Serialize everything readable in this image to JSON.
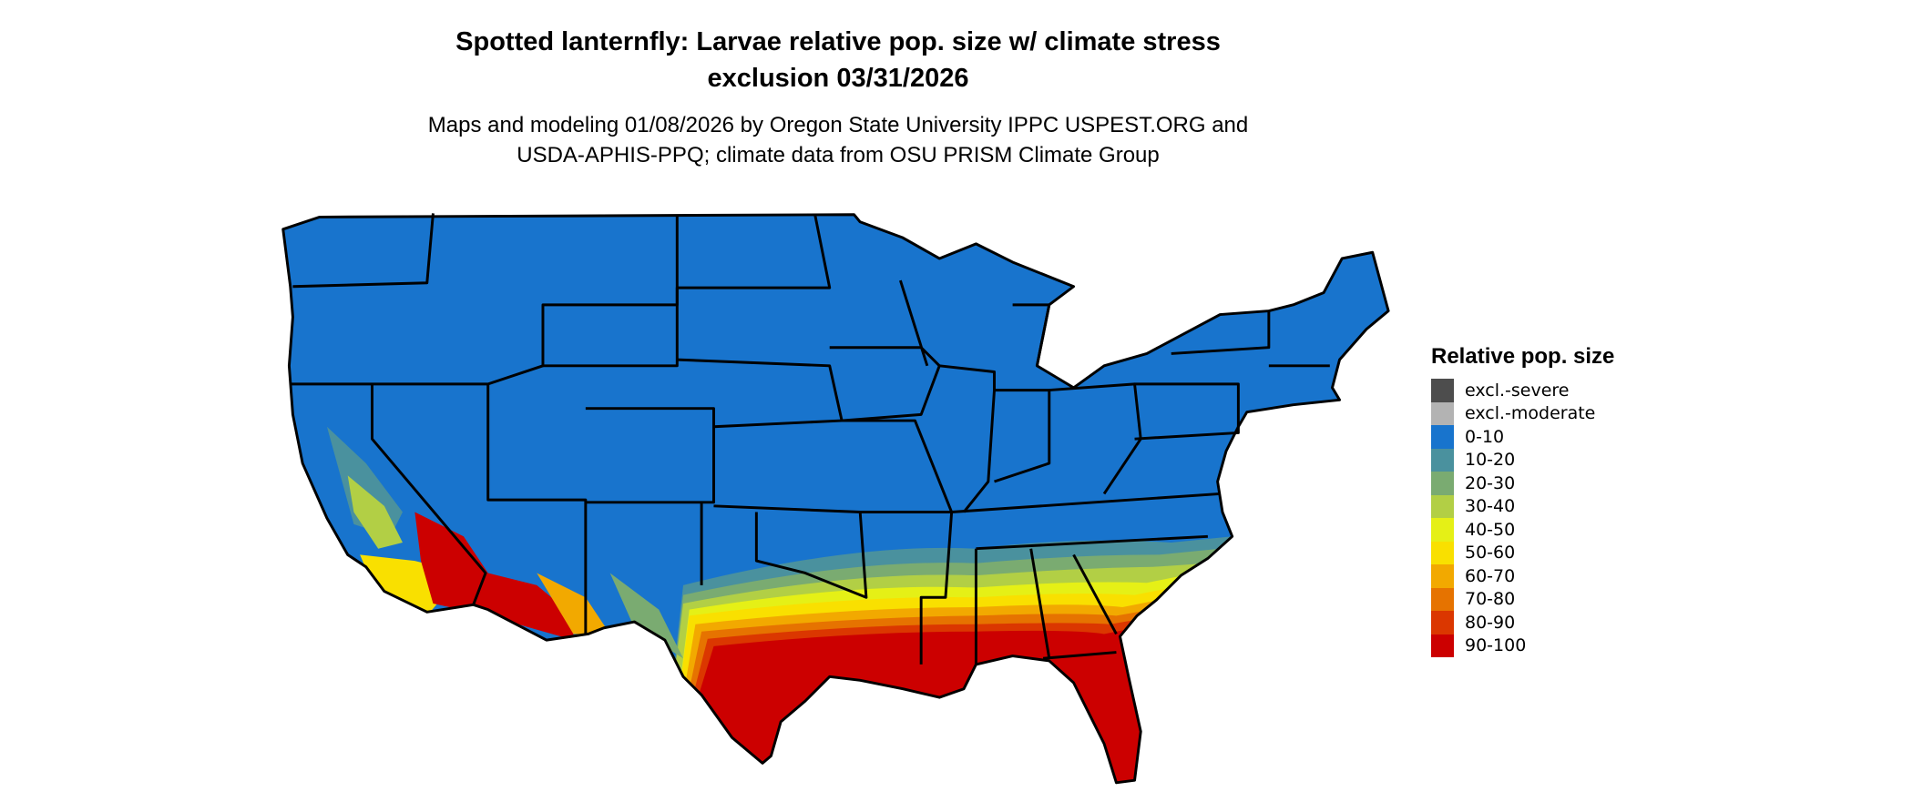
{
  "title": {
    "line1": "Spotted lanternfly: Larvae relative pop. size w/ climate stress",
    "line2": "exclusion 03/31/2026"
  },
  "subtitle": {
    "line1": "Maps and modeling 01/08/2026 by Oregon State University IPPC USPEST.ORG and",
    "line2": "USDA-APHIS-PPQ; climate data from OSU PRISM Climate Group"
  },
  "map": {
    "region": "Contiguous United States",
    "background_class": "0-10",
    "state_borders": true
  },
  "legend": {
    "title": "Relative pop. size",
    "placement": "right",
    "items": [
      {
        "label": "excl.-severe",
        "color": "#4d4d4d"
      },
      {
        "label": "excl.-moderate",
        "color": "#b3b3b3"
      },
      {
        "label": "0-10",
        "color": "#1874cd"
      },
      {
        "label": "10-20",
        "color": "#4a919e"
      },
      {
        "label": "20-30",
        "color": "#7aab71"
      },
      {
        "label": "30-40",
        "color": "#b2cf45"
      },
      {
        "label": "40-50",
        "color": "#e5f016"
      },
      {
        "label": "50-60",
        "color": "#f9e000"
      },
      {
        "label": "60-70",
        "color": "#f2a900"
      },
      {
        "label": "70-80",
        "color": "#e67300"
      },
      {
        "label": "80-90",
        "color": "#db3700"
      },
      {
        "label": "90-100",
        "color": "#cc0000"
      }
    ]
  }
}
